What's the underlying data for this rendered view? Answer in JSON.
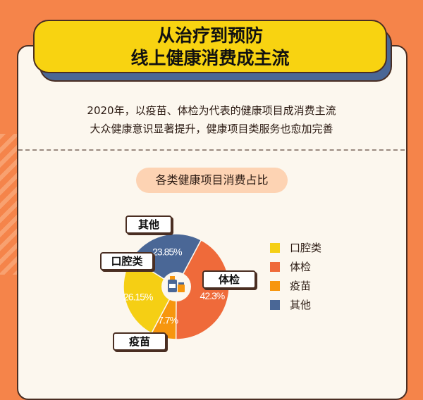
{
  "title": {
    "line1": "从治疗到预防",
    "line2": "线上健康消费成主流"
  },
  "intro": {
    "line1": "2020年，以疫苗、体检为代表的健康项目成消费主流",
    "line2": "大众健康意识显著提升，健康项目类服务也愈加完善"
  },
  "colors": {
    "background": "#f5844a",
    "banner": "#f8d311",
    "banner_shadow": "#4a6796",
    "card": "#fcf7ee"
  },
  "chart_data": {
    "type": "pie",
    "donut": true,
    "title": "各类健康项目消费占比",
    "center_icon": "medicine-bottle-icon",
    "legend_position": "right",
    "categories": [
      "口腔类",
      "体检",
      "疫苗",
      "其他"
    ],
    "values": [
      26.15,
      42.3,
      7.7,
      23.85
    ],
    "labels": [
      "26.15%",
      "42.3%",
      "7.7%",
      "23.85%"
    ],
    "colors": [
      "#f5cf14",
      "#ef6a3a",
      "#f7960e",
      "#4a6796"
    ]
  }
}
